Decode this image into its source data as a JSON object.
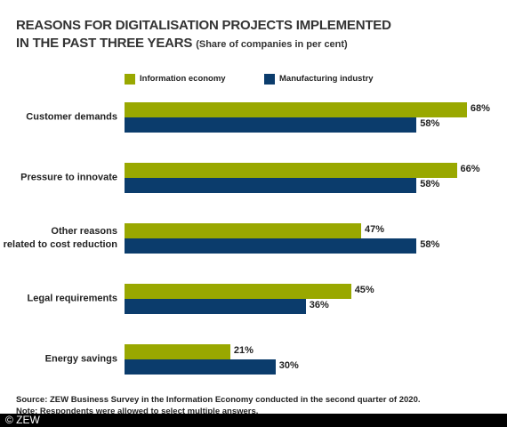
{
  "chart_data": {
    "type": "bar",
    "orientation": "horizontal",
    "title": [
      "REASONS FOR DIGITALISATION PROJECTS IMPLEMENTED",
      "IN THE PAST THREE YEARS"
    ],
    "subtitle": "(Share of companies in per cent)",
    "categories": [
      "Customer demands",
      "Pressure to innovate",
      "Other reasons\nrelated to cost reduction",
      "Legal requirements",
      "Energy savings"
    ],
    "series": [
      {
        "name": "Information economy",
        "color": "#99a800",
        "values": [
          68,
          66,
          47,
          45,
          21
        ],
        "value_labels": [
          "68%",
          "66%",
          "47%",
          "45%",
          "21%"
        ]
      },
      {
        "name": "Manufacturing industry",
        "color": "#0b3c6c",
        "values": [
          58,
          58,
          58,
          36,
          30
        ],
        "value_labels": [
          "58%",
          "58%",
          "58%",
          "36%",
          "30%"
        ]
      }
    ],
    "source": "Source: ZEW Business Survey in the Information Economy conducted in the second quarter of 2020.",
    "note": "Note: Respondents were allowed to select multiple answers."
  },
  "copyright": "© ZEW"
}
